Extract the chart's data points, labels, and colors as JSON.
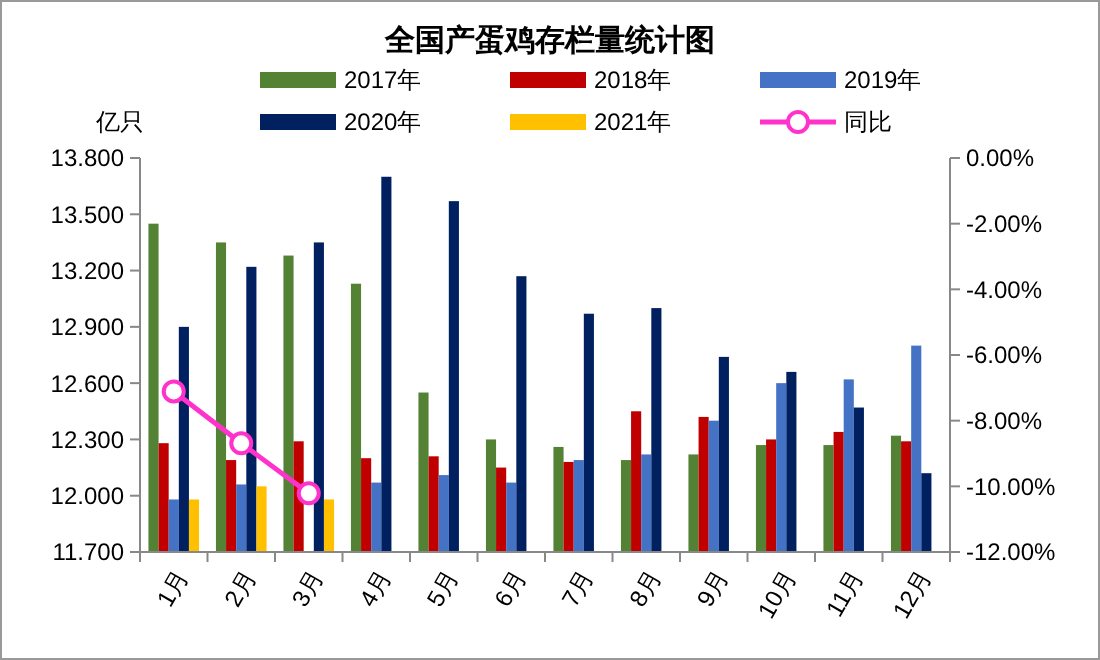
{
  "chart_data": {
    "type": "bar",
    "title": "全国产蛋鸡存栏量统计图",
    "ylabel": "亿只",
    "categories": [
      "1月",
      "2月",
      "3月",
      "4月",
      "5月",
      "6月",
      "7月",
      "8月",
      "9月",
      "10月",
      "11月",
      "12月"
    ],
    "series": [
      {
        "name": "2017年",
        "color": "#548235",
        "values": [
          13.45,
          13.35,
          13.28,
          13.13,
          12.55,
          12.3,
          12.26,
          12.19,
          12.22,
          12.27,
          12.27,
          12.32
        ]
      },
      {
        "name": "2018年",
        "color": "#c00000",
        "values": [
          12.28,
          12.19,
          12.29,
          12.2,
          12.21,
          12.15,
          12.18,
          12.45,
          12.42,
          12.3,
          12.34,
          12.29
        ]
      },
      {
        "name": "2019年",
        "color": "#4472c4",
        "values": [
          11.98,
          12.06,
          null,
          12.07,
          12.11,
          12.07,
          12.19,
          12.22,
          12.4,
          12.6,
          12.62,
          12.8
        ]
      },
      {
        "name": "2020年",
        "color": "#002060",
        "values": [
          12.9,
          13.22,
          13.35,
          13.7,
          13.57,
          13.17,
          12.97,
          13.0,
          12.74,
          12.66,
          12.47,
          12.12
        ]
      },
      {
        "name": "2021年",
        "color": "#ffc000",
        "values": [
          11.98,
          12.05,
          11.98,
          null,
          null,
          null,
          null,
          null,
          null,
          null,
          null,
          null
        ]
      },
      {
        "name": "同比",
        "type": "line",
        "axis": "y2",
        "color": "#ff33cc",
        "marker": "circle",
        "values": [
          -7.11,
          -8.69,
          -10.21,
          null,
          null,
          null,
          null,
          null,
          null,
          null,
          null,
          null
        ]
      }
    ],
    "ylim": [
      11.7,
      13.8
    ],
    "yticks": [
      {
        "value": 11.7,
        "label": "11.700"
      },
      {
        "value": 12.0,
        "label": "12.000"
      },
      {
        "value": 12.3,
        "label": "12.300"
      },
      {
        "value": 12.6,
        "label": "12.600"
      },
      {
        "value": 12.9,
        "label": "12.900"
      },
      {
        "value": 13.2,
        "label": "13.200"
      },
      {
        "value": 13.5,
        "label": "13.500"
      },
      {
        "value": 13.8,
        "label": "13.800"
      }
    ],
    "y2lim": [
      -12,
      0
    ],
    "y2ticks": [
      {
        "value": -12,
        "label": "-12.00%"
      },
      {
        "value": -10,
        "label": "-10.00%"
      },
      {
        "value": -8,
        "label": "-8.00%"
      },
      {
        "value": -6,
        "label": "-6.00%"
      },
      {
        "value": -4,
        "label": "-4.00%"
      },
      {
        "value": -2,
        "label": "-2.00%"
      },
      {
        "value": 0,
        "label": "0.00%"
      }
    ],
    "legend": "top",
    "grid": false
  }
}
